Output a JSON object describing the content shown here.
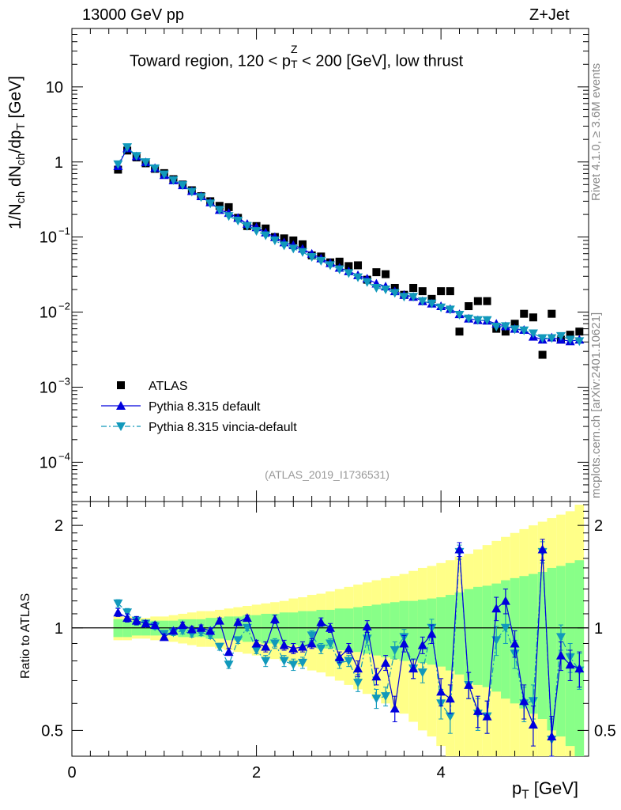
{
  "header": {
    "energy": "13000 GeV pp",
    "process": "Z+Jet"
  },
  "side_labels": {
    "rivet": "Rivet 4.1.0, ≥ 3.6M events",
    "mcplots": "mcplots.cern.ch [arXiv:2401.10621]"
  },
  "colors": {
    "data": "#000000",
    "pythia_default": "#0000dd",
    "vincia": "#1199bb",
    "band_inner": "#88ff88",
    "band_outer": "#ffff88",
    "ref_label": "#999999"
  },
  "chart_data": [
    {
      "type": "scatter",
      "title_parts": {
        "pre": "Toward region, 120 < p",
        "sub": "T",
        "sup": "Z",
        "post": " < 200 [GeV], low thrust"
      },
      "ylabel_parts": {
        "a": "1/N",
        "sub1": "ch",
        "b": " dN",
        "sub2": "ch",
        "c": "/dp",
        "sub3": "T",
        "d": " [GeV]"
      },
      "yscale": "log",
      "ylim": [
        3e-05,
        60
      ],
      "xlim": [
        0,
        5.6
      ],
      "y_ticks": [
        {
          "value": 0.0001,
          "label": "10",
          "exp": "−4"
        },
        {
          "value": 0.001,
          "label": "10",
          "exp": "−3"
        },
        {
          "value": 0.01,
          "label": "10",
          "exp": "−2"
        },
        {
          "value": 0.1,
          "label": "10",
          "exp": "−1"
        },
        {
          "value": 1,
          "label": "1",
          "exp": ""
        },
        {
          "value": 10,
          "label": "10",
          "exp": ""
        }
      ],
      "ref_label": "(ATLAS_2019_I1736531)",
      "legend_position": "bottom-left",
      "x": [
        0.5,
        0.6,
        0.7,
        0.8,
        0.9,
        1.0,
        1.1,
        1.2,
        1.3,
        1.4,
        1.5,
        1.6,
        1.7,
        1.8,
        1.9,
        2.0,
        2.1,
        2.2,
        2.3,
        2.4,
        2.5,
        2.6,
        2.7,
        2.8,
        2.9,
        3.0,
        3.1,
        3.2,
        3.3,
        3.4,
        3.5,
        3.6,
        3.7,
        3.8,
        3.9,
        4.0,
        4.1,
        4.2,
        4.3,
        4.4,
        4.5,
        4.6,
        4.7,
        4.8,
        4.9,
        5.0,
        5.1,
        5.2,
        5.3,
        5.4,
        5.5
      ],
      "series": [
        {
          "name": "ATLAS",
          "marker": "square",
          "values": [
            0.79,
            1.42,
            1.15,
            0.96,
            0.81,
            0.71,
            0.59,
            0.5,
            0.42,
            0.35,
            0.3,
            0.26,
            0.25,
            0.18,
            0.14,
            0.14,
            0.13,
            0.1,
            0.096,
            0.09,
            0.08,
            0.057,
            0.055,
            0.046,
            0.047,
            0.041,
            0.042,
            0.027,
            0.034,
            0.032,
            0.021,
            0.017,
            0.021,
            0.019,
            0.015,
            0.019,
            0.019,
            0.0055,
            0.012,
            0.014,
            0.014,
            0.006,
            0.0055,
            0.007,
            0.0095,
            0.0085,
            0.0027,
            0.0095,
            0.0043,
            0.005,
            0.0055
          ]
        },
        {
          "name": "Pythia 8.315 default",
          "marker": "triangle-up",
          "line": "solid",
          "values": [
            0.88,
            1.52,
            1.19,
            0.99,
            0.83,
            0.67,
            0.57,
            0.49,
            0.41,
            0.35,
            0.29,
            0.23,
            0.21,
            0.18,
            0.15,
            0.135,
            0.115,
            0.1,
            0.085,
            0.078,
            0.07,
            0.06,
            0.052,
            0.045,
            0.039,
            0.035,
            0.031,
            0.028,
            0.024,
            0.022,
            0.019,
            0.017,
            0.016,
            0.014,
            0.013,
            0.012,
            0.011,
            0.0094,
            0.0082,
            0.0078,
            0.0077,
            0.007,
            0.0065,
            0.006,
            0.0058,
            0.0047,
            0.0043,
            0.0046,
            0.0043,
            0.0041,
            0.0043
          ]
        },
        {
          "name": "Pythia 8.315 vincia-default",
          "marker": "triangle-down",
          "line": "dashdot",
          "values": [
            0.93,
            1.57,
            1.2,
            0.99,
            0.82,
            0.68,
            0.57,
            0.49,
            0.4,
            0.34,
            0.28,
            0.23,
            0.19,
            0.165,
            0.14,
            0.12,
            0.105,
            0.09,
            0.077,
            0.07,
            0.063,
            0.054,
            0.048,
            0.042,
            0.037,
            0.033,
            0.029,
            0.025,
            0.021,
            0.02,
            0.018,
            0.016,
            0.016,
            0.014,
            0.013,
            0.0115,
            0.0108,
            0.0092,
            0.0082,
            0.0078,
            0.0078,
            0.0064,
            0.0065,
            0.0059,
            0.0057,
            0.0052,
            0.0045,
            0.0045,
            0.0048,
            0.0043,
            0.0041
          ]
        }
      ]
    },
    {
      "type": "scatter",
      "ylabel": "Ratio to ATLAS",
      "yscale": "log",
      "ylim": [
        0.42,
        2.35
      ],
      "xlim": [
        0,
        5.6
      ],
      "xlabel_parts": {
        "a": "p",
        "sub": "T",
        "b": " [GeV]"
      },
      "x_ticks": [
        {
          "value": 0,
          "label": "0"
        },
        {
          "value": 2,
          "label": "2"
        },
        {
          "value": 4,
          "label": "4"
        }
      ],
      "y_ticks": [
        {
          "value": 0.5,
          "label": "0.5"
        },
        {
          "value": 1,
          "label": "1"
        },
        {
          "value": 2,
          "label": "2"
        }
      ],
      "reference_line": 1,
      "bands": {
        "inner_halfwidth": [
          0.06,
          0.06,
          0.05,
          0.05,
          0.05,
          0.05,
          0.05,
          0.06,
          0.06,
          0.06,
          0.07,
          0.07,
          0.08,
          0.08,
          0.09,
          0.09,
          0.1,
          0.1,
          0.11,
          0.11,
          0.12,
          0.12,
          0.13,
          0.13,
          0.14,
          0.14,
          0.15,
          0.16,
          0.17,
          0.18,
          0.19,
          0.2,
          0.2,
          0.21,
          0.22,
          0.23,
          0.25,
          0.27,
          0.3,
          0.32,
          0.33,
          0.35,
          0.38,
          0.4,
          0.42,
          0.44,
          0.46,
          0.5,
          0.52,
          0.55,
          0.58
        ],
        "outer_halfwidth": [
          0.08,
          0.08,
          0.07,
          0.07,
          0.08,
          0.08,
          0.09,
          0.1,
          0.11,
          0.12,
          0.12,
          0.13,
          0.14,
          0.15,
          0.16,
          0.17,
          0.18,
          0.19,
          0.2,
          0.22,
          0.23,
          0.25,
          0.26,
          0.28,
          0.3,
          0.32,
          0.34,
          0.36,
          0.38,
          0.4,
          0.42,
          0.44,
          0.47,
          0.5,
          0.52,
          0.55,
          0.58,
          0.62,
          0.65,
          0.7,
          0.75,
          0.8,
          0.85,
          0.9,
          0.95,
          1.0,
          1.05,
          1.1,
          1.15,
          1.2,
          1.3
        ]
      },
      "series": [
        {
          "name": "Pythia 8.315 default",
          "values": [
            1.11,
            1.07,
            1.05,
            1.03,
            1.02,
            0.94,
            0.98,
            1.02,
            0.99,
            1.0,
            0.98,
            1.05,
            0.85,
            1.04,
            1.07,
            0.9,
            0.88,
            1.06,
            0.89,
            0.87,
            0.88,
            0.9,
            1.04,
            1.0,
            0.82,
            0.87,
            0.76,
            1.01,
            0.72,
            0.79,
            0.58,
            0.9,
            0.76,
            0.89,
            0.96,
            0.65,
            0.62,
            1.7,
            0.68,
            0.57,
            0.55,
            1.14,
            1.2,
            0.9,
            0.61,
            0.52,
            1.7,
            0.48,
            0.83,
            0.78,
            0.76
          ],
          "errors": [
            0.03,
            0.03,
            0.03,
            0.02,
            0.02,
            0.02,
            0.02,
            0.02,
            0.02,
            0.02,
            0.02,
            0.02,
            0.02,
            0.02,
            0.02,
            0.02,
            0.03,
            0.03,
            0.03,
            0.03,
            0.03,
            0.03,
            0.03,
            0.03,
            0.03,
            0.03,
            0.04,
            0.04,
            0.04,
            0.04,
            0.05,
            0.05,
            0.05,
            0.05,
            0.06,
            0.06,
            0.06,
            0.08,
            0.06,
            0.06,
            0.06,
            0.09,
            0.1,
            0.08,
            0.07,
            0.07,
            0.12,
            0.07,
            0.08,
            0.08,
            0.09
          ]
        },
        {
          "name": "Pythia 8.315 vincia-default",
          "values": [
            1.18,
            1.11,
            1.05,
            1.03,
            1.01,
            0.96,
            0.97,
            0.98,
            0.96,
            0.97,
            0.95,
            0.88,
            0.78,
            0.92,
            1.0,
            0.86,
            0.8,
            0.9,
            0.8,
            0.78,
            0.79,
            0.95,
            0.87,
            0.9,
            0.79,
            0.8,
            0.69,
            0.93,
            0.62,
            0.63,
            0.86,
            0.94,
            0.76,
            0.74,
            1.0,
            0.6,
            0.55,
            1.67,
            0.68,
            0.56,
            0.55,
            0.92,
            1.0,
            0.84,
            0.6,
            0.61,
            1.67,
            0.47,
            0.94,
            0.82,
            0.75
          ],
          "errors": [
            0.03,
            0.03,
            0.03,
            0.02,
            0.02,
            0.02,
            0.02,
            0.02,
            0.02,
            0.02,
            0.02,
            0.02,
            0.02,
            0.02,
            0.02,
            0.02,
            0.03,
            0.03,
            0.03,
            0.03,
            0.03,
            0.03,
            0.03,
            0.03,
            0.03,
            0.03,
            0.04,
            0.04,
            0.04,
            0.04,
            0.05,
            0.05,
            0.05,
            0.05,
            0.06,
            0.06,
            0.06,
            0.08,
            0.06,
            0.06,
            0.06,
            0.09,
            0.1,
            0.08,
            0.07,
            0.07,
            0.12,
            0.07,
            0.08,
            0.08,
            0.09
          ]
        }
      ]
    }
  ]
}
